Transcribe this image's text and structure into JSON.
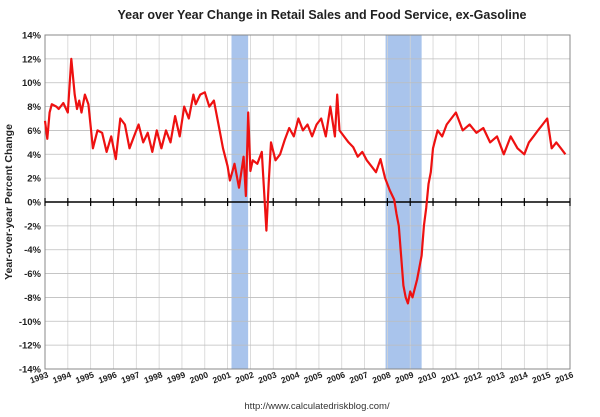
{
  "chart_data": {
    "type": "line",
    "title": "Year over Year Change in Retail Sales and Food Service, ex-Gasoline",
    "ylabel": "Year-over-year Percent Change",
    "xlabel": "",
    "xlim": [
      1993.0,
      2016.0
    ],
    "ylim": [
      -14,
      14
    ],
    "y_ticks": [
      -14,
      -12,
      -10,
      -8,
      -6,
      -4,
      -2,
      0,
      2,
      4,
      6,
      8,
      10,
      12,
      14
    ],
    "y_tick_labels": [
      "-14%",
      "-12%",
      "-10%",
      "-8%",
      "-6%",
      "-4%",
      "-2%",
      "0%",
      "2%",
      "4%",
      "6%",
      "8%",
      "10%",
      "12%",
      "14%"
    ],
    "x_tick_labels": [
      "1993",
      "1994",
      "1995",
      "1996",
      "1997",
      "1998",
      "1999",
      "2000",
      "2001",
      "2002",
      "2003",
      "2004",
      "2005",
      "2006",
      "2007",
      "2008",
      "2009",
      "2010",
      "2011",
      "2012",
      "2013",
      "2014",
      "2015",
      "2016"
    ],
    "grid": true,
    "series_color": "#ee1111",
    "recession_color": "#a9c4ec",
    "recessions": [
      [
        2001.17,
        2001.9
      ],
      [
        2007.92,
        2009.5
      ]
    ],
    "source": "http://www.calculatedriskblog.com/",
    "series": [
      {
        "x": [
          1993.0,
          1993.1,
          1993.2,
          1993.3,
          1993.5,
          1993.6,
          1993.8,
          1994.0,
          1994.15,
          1994.3,
          1994.4,
          1994.5,
          1994.6,
          1994.75,
          1994.9,
          1995.1,
          1995.3,
          1995.5,
          1995.7,
          1995.9,
          1996.1,
          1996.3,
          1996.5,
          1996.7,
          1996.9,
          1997.1,
          1997.3,
          1997.5,
          1997.7,
          1997.9,
          1998.1,
          1998.3,
          1998.5,
          1998.7,
          1998.9,
          1999.1,
          1999.3,
          1999.5,
          1999.6,
          1999.8,
          2000.0,
          2000.2,
          2000.4,
          2000.6,
          2000.8,
          2001.0,
          2001.1,
          2001.3,
          2001.5,
          2001.7,
          2001.8,
          2001.9,
          2002.0,
          2002.1,
          2002.3,
          2002.5,
          2002.7,
          2002.8,
          2002.9,
          2003.1,
          2003.3,
          2003.5,
          2003.7,
          2003.9,
          2004.1,
          2004.3,
          2004.5,
          2004.7,
          2004.9,
          2005.1,
          2005.3,
          2005.5,
          2005.7,
          2005.8,
          2005.9,
          2006.1,
          2006.3,
          2006.5,
          2006.7,
          2006.9,
          2007.1,
          2007.3,
          2007.5,
          2007.7,
          2007.9,
          2008.1,
          2008.3,
          2008.4,
          2008.5,
          2008.6,
          2008.7,
          2008.8,
          2008.9,
          2009.0,
          2009.1,
          2009.3,
          2009.5,
          2009.6,
          2009.7,
          2009.8,
          2009.9,
          2010.0,
          2010.2,
          2010.4,
          2010.6,
          2010.8,
          2011.0,
          2011.3,
          2011.6,
          2011.9,
          2012.2,
          2012.5,
          2012.8,
          2013.1,
          2013.4,
          2013.7,
          2014.0,
          2014.2,
          2014.4,
          2014.6,
          2014.8,
          2015.0,
          2015.2,
          2015.4,
          2015.6,
          2015.8
        ],
        "y": [
          6.8,
          5.3,
          7.5,
          8.2,
          8.0,
          7.8,
          8.3,
          7.5,
          12.0,
          9.0,
          7.8,
          8.5,
          7.5,
          9.0,
          8.2,
          4.5,
          6.0,
          5.8,
          4.2,
          5.5,
          3.6,
          7.0,
          6.5,
          4.5,
          5.5,
          6.5,
          5.0,
          5.8,
          4.2,
          6.0,
          4.5,
          6.0,
          5.0,
          7.2,
          5.5,
          8.0,
          7.0,
          9.0,
          8.2,
          9.0,
          9.2,
          8.0,
          8.5,
          6.5,
          4.5,
          3.0,
          1.8,
          3.2,
          1.2,
          3.8,
          0.5,
          7.5,
          2.6,
          3.5,
          3.2,
          4.2,
          -2.4,
          1.6,
          5.0,
          3.5,
          4.0,
          5.2,
          6.2,
          5.5,
          7.0,
          6.0,
          6.5,
          5.5,
          6.5,
          7.0,
          5.5,
          8.0,
          5.5,
          9.0,
          6.0,
          5.5,
          5.0,
          4.6,
          3.8,
          4.2,
          3.5,
          3.0,
          2.5,
          3.6,
          2.0,
          1.0,
          0.2,
          -1.0,
          -2.0,
          -4.5,
          -7.0,
          -8.0,
          -8.5,
          -7.5,
          -8.0,
          -6.5,
          -4.5,
          -2.0,
          -0.5,
          1.5,
          2.5,
          4.5,
          6.0,
          5.5,
          6.5,
          7.0,
          7.5,
          6.0,
          6.5,
          5.8,
          6.2,
          5.0,
          5.5,
          4.0,
          5.5,
          4.5,
          4.0,
          5.0,
          5.5,
          6.0,
          6.5,
          7.0,
          4.5,
          5.0,
          4.5,
          4.0
        ]
      }
    ]
  }
}
